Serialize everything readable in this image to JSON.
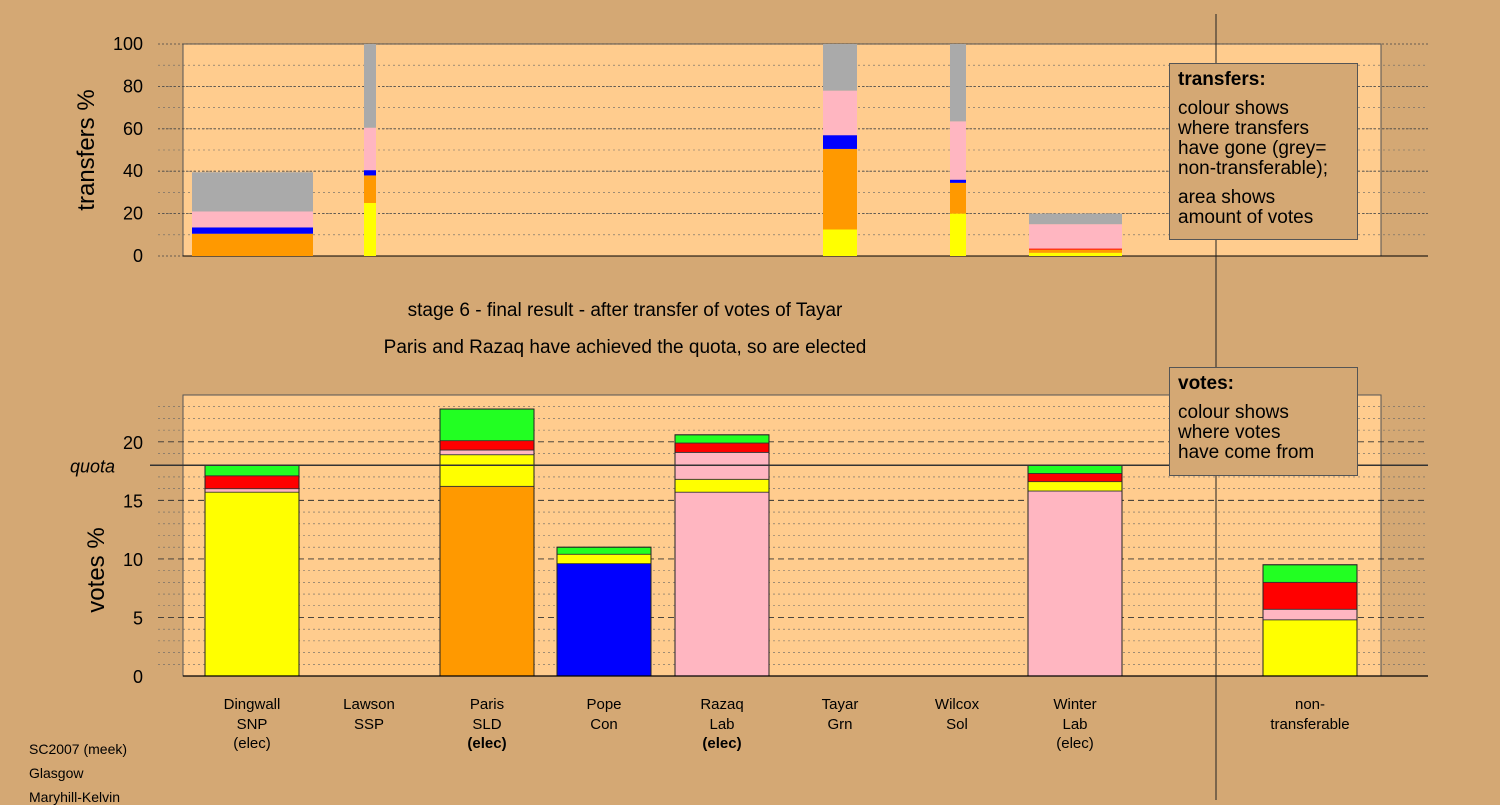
{
  "headings": {
    "line1": "stage 6 - final result - after transfer of votes of Tayar",
    "line2": "Paris and Razaq have achieved the quota, so are elected"
  },
  "legend_transfers": {
    "title": "transfers:",
    "line1": "colour shows\nwhere transfers\nhave gone (grey=\nnon-transferable);",
    "line2": "area shows\namount of votes"
  },
  "legend_votes": {
    "title": "votes:",
    "line1": "colour shows\nwhere votes\nhave come from"
  },
  "footer": {
    "line1": "SC2007 (meek)",
    "line2": "Glasgow",
    "line3": "Maryhill-Kelvin"
  },
  "colors": {
    "SNP": "#ffff00",
    "SSP": "#ff0000",
    "SLD": "#ff9900",
    "Con": "#0000ff",
    "Lab": "#ffb6c1",
    "Grn": "#22ff22",
    "Sol": "#ff0000",
    "non": "#aaaaaa",
    "panel": "#ffcc8e",
    "background": "#d4a874"
  },
  "chart_data": [
    {
      "type": "bar",
      "ylabel": "transfers %",
      "ylim": [
        0,
        100
      ],
      "yticks": [
        0,
        20,
        40,
        60,
        80,
        100
      ],
      "note": "stacked transfers; bar width indicates amount of votes transferred",
      "bars": [
        {
          "candidate": "Dingwall",
          "segments": [
            {
              "party": "SLD",
              "value": 10.5
            },
            {
              "party": "Con",
              "value": 3
            },
            {
              "party": "Lab",
              "value": 7.5
            },
            {
              "party": "non",
              "value": 18.5
            }
          ]
        },
        {
          "candidate": "Lawson",
          "segments": [
            {
              "party": "SNP",
              "value": 25
            },
            {
              "party": "SLD",
              "value": 13
            },
            {
              "party": "Con",
              "value": 2.5
            },
            {
              "party": "Lab",
              "value": 20
            },
            {
              "party": "non",
              "value": 39.5
            }
          ]
        },
        {
          "candidate": "Tayar",
          "segments": [
            {
              "party": "SNP",
              "value": 12.5
            },
            {
              "party": "SLD",
              "value": 38
            },
            {
              "party": "Con",
              "value": 6.5
            },
            {
              "party": "Lab",
              "value": 21
            },
            {
              "party": "non",
              "value": 22
            }
          ]
        },
        {
          "candidate": "Wilcox",
          "segments": [
            {
              "party": "SNP",
              "value": 20
            },
            {
              "party": "SLD",
              "value": 14.5
            },
            {
              "party": "Con",
              "value": 1.5
            },
            {
              "party": "Lab",
              "value": 27.5
            },
            {
              "party": "non",
              "value": 36.5
            }
          ]
        },
        {
          "candidate": "Winter",
          "segments": [
            {
              "party": "SNP",
              "value": 1.5
            },
            {
              "party": "SLD",
              "value": 1.5
            },
            {
              "party": "SSP",
              "value": 0.5
            },
            {
              "party": "Lab",
              "value": 11.5
            },
            {
              "party": "non",
              "value": 5
            }
          ]
        }
      ]
    },
    {
      "type": "bar",
      "ylabel": "votes %",
      "ylim": [
        0,
        24
      ],
      "yticks": [
        0,
        5,
        10,
        15,
        20
      ],
      "quota": 18,
      "quota_label": "quota",
      "candidates": [
        {
          "name": "Dingwall",
          "party": "SNP",
          "status": "(elec)",
          "bold": false,
          "segments": [
            {
              "party": "SNP",
              "value": 15.7
            },
            {
              "party": "Lab",
              "value": 0.3
            },
            {
              "party": "SSP",
              "value": 1.1
            },
            {
              "party": "Grn",
              "value": 0.9
            }
          ]
        },
        {
          "name": "Lawson",
          "party": "SSP",
          "status": "",
          "bold": false,
          "segments": []
        },
        {
          "name": "Paris",
          "party": "SLD",
          "status": "(elec)",
          "bold": true,
          "segments": [
            {
              "party": "SLD",
              "value": 16.2
            },
            {
              "party": "SNP",
              "value": 2.7
            },
            {
              "party": "Lab",
              "value": 0.4
            },
            {
              "party": "SSP",
              "value": 0.8
            },
            {
              "party": "Grn",
              "value": 2.7
            }
          ]
        },
        {
          "name": "Pope",
          "party": "Con",
          "status": "",
          "bold": false,
          "segments": [
            {
              "party": "Con",
              "value": 9.6
            },
            {
              "party": "SNP",
              "value": 0.8
            },
            {
              "party": "Grn",
              "value": 0.6
            }
          ]
        },
        {
          "name": "Razaq",
          "party": "Lab",
          "status": "(elec)",
          "bold": true,
          "segments": [
            {
              "party": "Lab",
              "value": 15.7
            },
            {
              "party": "SNP",
              "value": 1.1
            },
            {
              "party": "Lab",
              "value": 2.3
            },
            {
              "party": "SSP",
              "value": 0.8
            },
            {
              "party": "Grn",
              "value": 0.7
            }
          ]
        },
        {
          "name": "Tayar",
          "party": "Grn",
          "status": "",
          "bold": false,
          "segments": []
        },
        {
          "name": "Wilcox",
          "party": "Sol",
          "status": "",
          "bold": false,
          "segments": []
        },
        {
          "name": "Winter",
          "party": "Lab",
          "status": "(elec)",
          "bold": false,
          "segments": [
            {
              "party": "Lab",
              "value": 15.8
            },
            {
              "party": "SNP",
              "value": 0.8
            },
            {
              "party": "SSP",
              "value": 0.7
            },
            {
              "party": "Grn",
              "value": 0.7
            }
          ]
        },
        {
          "name": "non-",
          "party": "transferable",
          "status": "",
          "bold": false,
          "segments": [
            {
              "party": "SNP",
              "value": 4.8
            },
            {
              "party": "Lab",
              "value": 0.9
            },
            {
              "party": "SSP",
              "value": 2.3
            },
            {
              "party": "Grn",
              "value": 1.5
            }
          ]
        }
      ]
    }
  ]
}
